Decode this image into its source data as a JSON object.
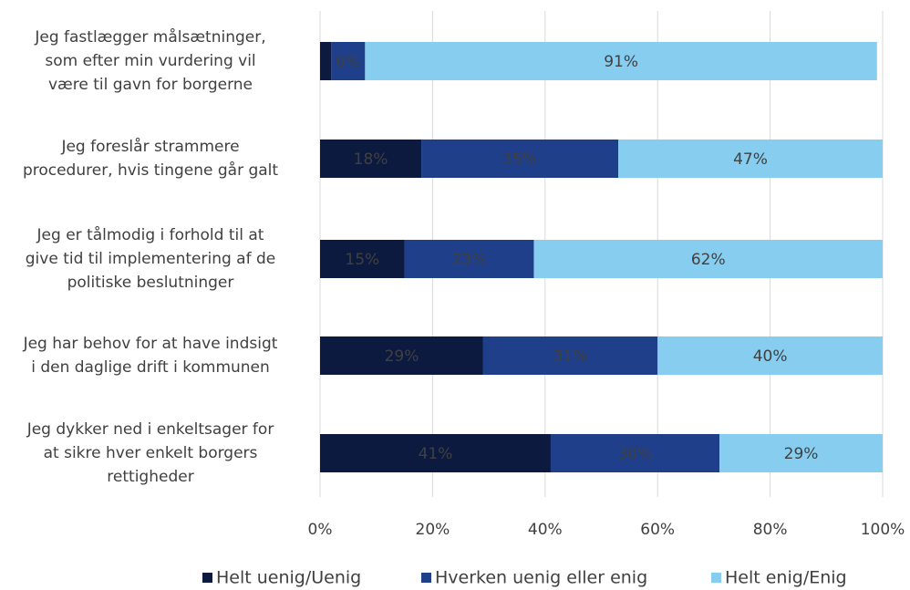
{
  "chart_data": {
    "type": "stacked_barh",
    "categories": [
      "Jeg fastlægger målsætninger,\nsom efter min vurdering vil\nvære til gavn for borgerne",
      "Jeg foreslår strammere\nprocedurer, hvis tingene går galt",
      "Jeg er tålmodig i forhold til at\ngive tid til implementering af de\npolitiske beslutninger",
      "Jeg har behov for at have indsigt\ni den daglige drift i kommunen",
      "Jeg dykker ned i enkeltsager for\nat sikre hver enkelt borgers\nrettigheder"
    ],
    "series": [
      {
        "name": "Helt uenig/Uenig",
        "color": "#0c1a40",
        "values": [
          2,
          18,
          15,
          29,
          41
        ],
        "value_labels": [
          null,
          "18%",
          "15%",
          "29%",
          "41%"
        ]
      },
      {
        "name": "Hverken uenig eller enig",
        "color": "#1f3f8a",
        "values": [
          6,
          35,
          23,
          31,
          30
        ],
        "value_labels": [
          "6%",
          "35%",
          "23%",
          "31%",
          "30%"
        ]
      },
      {
        "name": "Helt enig/Enig",
        "color": "#87cdf0",
        "values": [
          91,
          47,
          62,
          40,
          29
        ],
        "value_labels": [
          "91%",
          "47%",
          "62%",
          "40%",
          "29%"
        ]
      }
    ],
    "xlim": [
      0,
      100
    ],
    "xticks": [
      {
        "value": 0,
        "label": "0%"
      },
      {
        "value": 20,
        "label": "20%"
      },
      {
        "value": 40,
        "label": "40%"
      },
      {
        "value": 60,
        "label": "60%"
      },
      {
        "value": 80,
        "label": "80%"
      },
      {
        "value": 100,
        "label": "100%"
      }
    ],
    "grid": true,
    "legend": "bottom"
  }
}
